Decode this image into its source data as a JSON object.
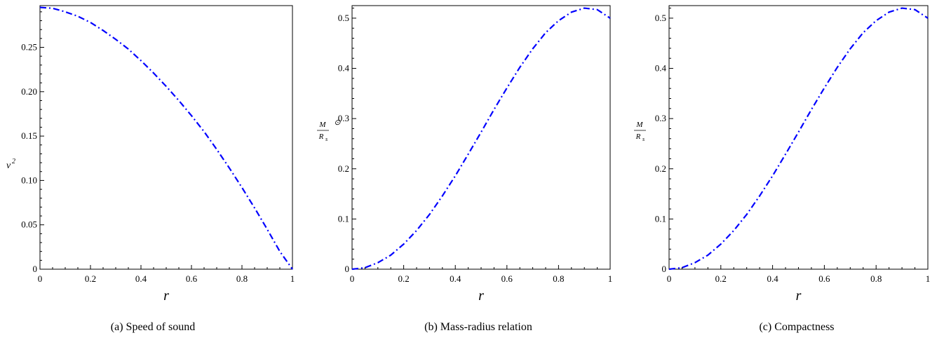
{
  "colors": {
    "curve": "#0000ff",
    "axis": "#000000"
  },
  "chart_data": [
    {
      "type": "line",
      "title": "",
      "caption": "(a) Speed of sound",
      "xlabel": "r",
      "ylabel": "v",
      "ylabel_sup": "2",
      "xlim": [
        0,
        1
      ],
      "ylim": [
        0,
        0.297
      ],
      "xticks": [
        0,
        0.2,
        0.4,
        0.6,
        0.8,
        1
      ],
      "xtick_labels": [
        "0",
        "0.2",
        "0.4",
        "0.6",
        "0.8",
        "1"
      ],
      "yticks": [
        0,
        0.05,
        0.1,
        0.15,
        0.2,
        0.25
      ],
      "ytick_labels": [
        "0",
        "0.05",
        "0.10",
        "0.15",
        "0.20",
        "0.25"
      ],
      "line_style": "dash-dot",
      "series": [
        {
          "x": [
            0,
            0.05,
            0.1,
            0.15,
            0.2,
            0.25,
            0.3,
            0.35,
            0.4,
            0.45,
            0.5,
            0.55,
            0.6,
            0.65,
            0.7,
            0.75,
            0.8,
            0.85,
            0.9,
            0.95,
            1.0
          ],
          "values": [
            0.295,
            0.294,
            0.29,
            0.285,
            0.278,
            0.269,
            0.259,
            0.248,
            0.235,
            0.221,
            0.206,
            0.19,
            0.173,
            0.155,
            0.135,
            0.114,
            0.092,
            0.069,
            0.045,
            0.02,
            0.0
          ]
        }
      ]
    },
    {
      "type": "line",
      "title": "",
      "caption": "(b) Mass-radius relation",
      "xlabel": "r",
      "ylabel_num": "M",
      "ylabel_den": "R",
      "ylabel_den_sub": "s",
      "ylabel_extra": "⊙",
      "xlim": [
        0,
        1
      ],
      "ylim": [
        0,
        0.525
      ],
      "xticks": [
        0,
        0.2,
        0.4,
        0.6,
        0.8,
        1
      ],
      "xtick_labels": [
        "0",
        "0.2",
        "0.4",
        "0.6",
        "0.8",
        "1"
      ],
      "yticks": [
        0,
        0.1,
        0.2,
        0.3,
        0.4,
        0.5
      ],
      "ytick_labels": [
        "0",
        "0.1",
        "0.2",
        "0.3",
        "0.4",
        "0.5"
      ],
      "line_style": "dash-dot",
      "series": [
        {
          "x": [
            0,
            0.05,
            0.1,
            0.15,
            0.2,
            0.25,
            0.3,
            0.35,
            0.4,
            0.45,
            0.5,
            0.55,
            0.6,
            0.65,
            0.7,
            0.75,
            0.8,
            0.85,
            0.9,
            0.95,
            1.0
          ],
          "values": [
            0.0,
            0.003,
            0.013,
            0.028,
            0.05,
            0.077,
            0.109,
            0.146,
            0.186,
            0.229,
            0.273,
            0.318,
            0.361,
            0.402,
            0.439,
            0.471,
            0.495,
            0.512,
            0.52,
            0.517,
            0.5
          ]
        }
      ]
    },
    {
      "type": "line",
      "title": "",
      "caption": "(c) Compactness",
      "xlabel": "r",
      "ylabel_num": "M",
      "ylabel_den": "R",
      "ylabel_den_sub": "s",
      "xlim": [
        0,
        1
      ],
      "ylim": [
        0,
        0.525
      ],
      "xticks": [
        0,
        0.2,
        0.4,
        0.6,
        0.8,
        1
      ],
      "xtick_labels": [
        "0",
        "0.2",
        "0.4",
        "0.6",
        "0.8",
        "1"
      ],
      "yticks": [
        0,
        0.1,
        0.2,
        0.3,
        0.4,
        0.5
      ],
      "ytick_labels": [
        "0",
        "0.1",
        "0.2",
        "0.3",
        "0.4",
        "0.5"
      ],
      "line_style": "dash-dot",
      "series": [
        {
          "x": [
            0,
            0.05,
            0.1,
            0.15,
            0.2,
            0.25,
            0.3,
            0.35,
            0.4,
            0.45,
            0.5,
            0.55,
            0.6,
            0.65,
            0.7,
            0.75,
            0.8,
            0.85,
            0.9,
            0.95,
            1.0
          ],
          "values": [
            0.0,
            0.003,
            0.013,
            0.028,
            0.05,
            0.077,
            0.109,
            0.146,
            0.186,
            0.229,
            0.273,
            0.318,
            0.361,
            0.402,
            0.439,
            0.471,
            0.495,
            0.512,
            0.52,
            0.517,
            0.5
          ]
        }
      ]
    }
  ]
}
